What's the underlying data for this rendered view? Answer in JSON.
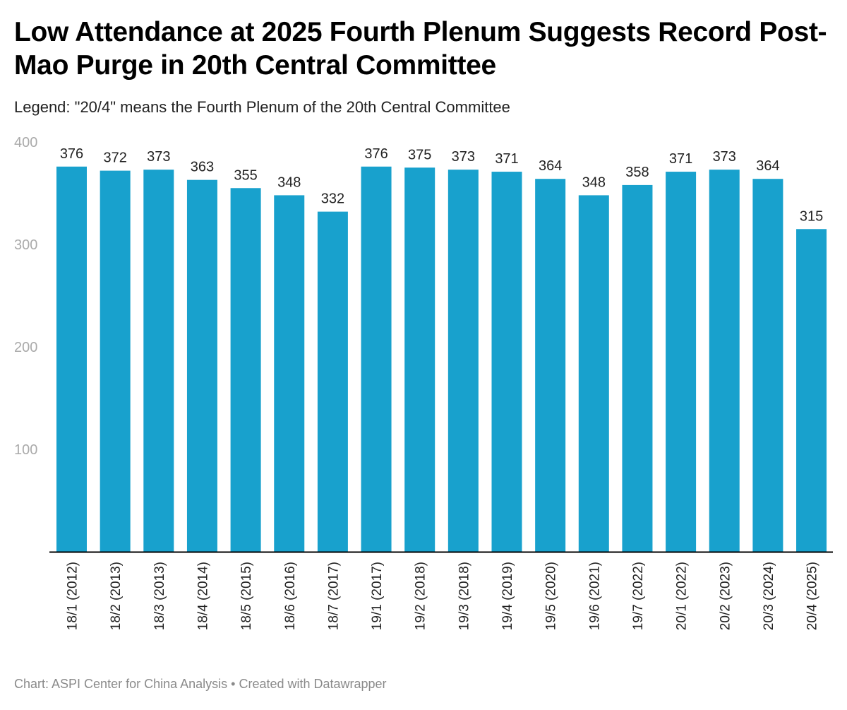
{
  "header": {
    "title": "Low Attendance at 2025 Fourth Plenum Suggests Record Post-Mao Purge in 20th Central Committee",
    "subtitle": "Legend: \"20/4\" means the Fourth Plenum of the 20th Central Committee"
  },
  "footer": {
    "credit": "Chart: ASPI Center for China Analysis • Created with Datawrapper"
  },
  "colors": {
    "bar": "#18a1cd",
    "axis": "#000000",
    "tick_label": "#aaaaaa"
  },
  "chart_data": {
    "type": "bar",
    "title": "Low Attendance at 2025 Fourth Plenum Suggests Record Post-Mao Purge in 20th Central Committee",
    "subtitle": "Legend: \"20/4\" means the Fourth Plenum of the 20th Central Committee",
    "xlabel": "",
    "ylabel": "",
    "categories": [
      "18/1 (2012)",
      "18/2 (2013)",
      "18/3 (2013)",
      "18/4 (2014)",
      "18/5 (2015)",
      "18/6 (2016)",
      "18/7 (2017)",
      "19/1 (2017)",
      "19/2 (2018)",
      "19/3 (2018)",
      "19/4 (2019)",
      "19/5 (2020)",
      "19/6 (2021)",
      "19/7 (2022)",
      "20/1 (2022)",
      "20/2 (2023)",
      "20/3 (2024)",
      "20/4 (2025)"
    ],
    "values": [
      376,
      372,
      373,
      363,
      355,
      348,
      332,
      376,
      375,
      373,
      371,
      364,
      348,
      358,
      371,
      373,
      364,
      315
    ],
    "ylim": [
      0,
      400
    ],
    "yticks": [
      100,
      200,
      300,
      400
    ],
    "grid": false,
    "data_labels": true,
    "x_label_rotation": "vertical",
    "legend": "none"
  }
}
